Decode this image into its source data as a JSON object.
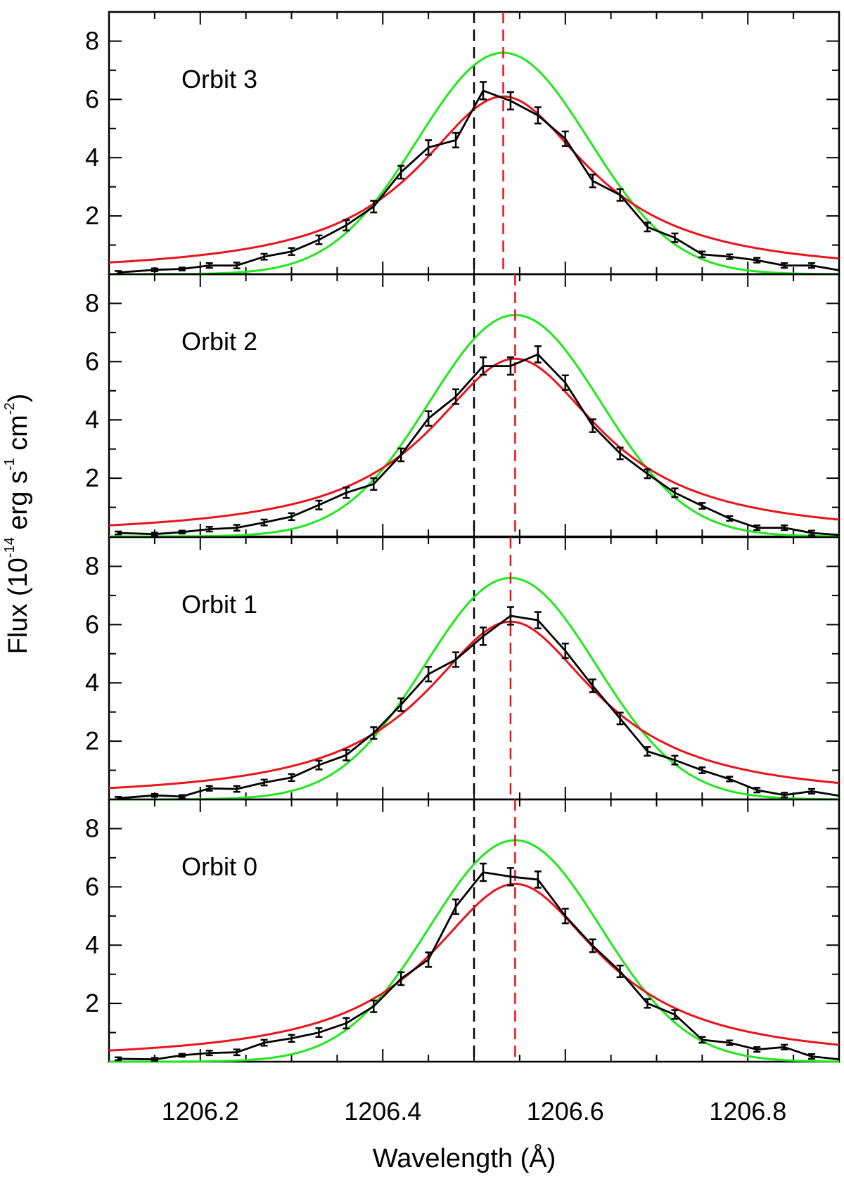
{
  "chart_data": {
    "type": "line",
    "xlabel": "Wavelength (Å)",
    "ylabel": {
      "prefix": "Flux (10",
      "exp1": "-14",
      "mid1": " erg s",
      "exp2": "-1",
      "mid2": " cm",
      "exp3": "-2",
      "suffix": ")"
    },
    "xlim": [
      1206.1,
      1206.9
    ],
    "ylim": [
      0,
      9
    ],
    "x_ticks": [
      1206.2,
      1206.4,
      1206.6,
      1206.8
    ],
    "x_tick_labels": [
      "1206.2",
      "1206.4",
      "1206.6",
      "1206.8"
    ],
    "y_ticks": [
      2,
      4,
      6,
      8
    ],
    "y_tick_labels": [
      "2",
      "4",
      "6",
      "8"
    ],
    "colors": {
      "data": "#000000",
      "fit": "#e8141b",
      "model": "#22e61e",
      "rest_line": "#000000",
      "fit_center": "#e8141b"
    },
    "rest_wavelength": 1206.5,
    "x": [
      1206.11,
      1206.15,
      1206.18,
      1206.21,
      1206.24,
      1206.27,
      1206.3,
      1206.33,
      1206.36,
      1206.39,
      1206.42,
      1206.45,
      1206.48,
      1206.51,
      1206.54,
      1206.57,
      1206.6,
      1206.63,
      1206.66,
      1206.69,
      1206.72,
      1206.75,
      1206.78,
      1206.81,
      1206.84,
      1206.87
    ],
    "panels": [
      {
        "label": "Orbit 3",
        "fit_center": 1206.532,
        "fit_peak": 6.1,
        "model_peak": 7.6,
        "y": [
          0.06,
          0.15,
          0.18,
          0.3,
          0.3,
          0.6,
          0.78,
          1.18,
          1.68,
          2.32,
          3.5,
          4.35,
          4.6,
          6.3,
          5.95,
          5.45,
          4.65,
          3.2,
          2.72,
          1.62,
          1.25,
          0.68,
          0.6,
          0.48,
          0.3,
          0.3
        ],
        "err": [
          0.05,
          0.05,
          0.05,
          0.08,
          0.1,
          0.1,
          0.12,
          0.15,
          0.18,
          0.2,
          0.22,
          0.25,
          0.25,
          0.3,
          0.3,
          0.28,
          0.25,
          0.22,
          0.2,
          0.15,
          0.15,
          0.1,
          0.08,
          0.08,
          0.08,
          0.08
        ]
      },
      {
        "label": "Orbit 2",
        "fit_center": 1206.545,
        "fit_peak": 6.1,
        "model_peak": 7.6,
        "y": [
          0.12,
          0.08,
          0.15,
          0.25,
          0.3,
          0.48,
          0.68,
          1.08,
          1.5,
          1.8,
          2.8,
          4.05,
          4.8,
          5.85,
          5.85,
          6.25,
          5.28,
          3.8,
          2.85,
          2.15,
          1.5,
          1.05,
          0.62,
          0.3,
          0.3,
          0.12
        ],
        "err": [
          0.05,
          0.05,
          0.05,
          0.08,
          0.1,
          0.1,
          0.12,
          0.15,
          0.18,
          0.2,
          0.22,
          0.25,
          0.25,
          0.3,
          0.3,
          0.28,
          0.25,
          0.22,
          0.2,
          0.15,
          0.15,
          0.1,
          0.08,
          0.08,
          0.08,
          0.08
        ]
      },
      {
        "label": "Orbit 1",
        "fit_center": 1206.54,
        "fit_peak": 6.1,
        "model_peak": 7.6,
        "y": [
          0.04,
          0.14,
          0.1,
          0.38,
          0.36,
          0.58,
          0.75,
          1.18,
          1.52,
          2.28,
          3.25,
          4.3,
          4.8,
          5.6,
          6.3,
          6.15,
          5.1,
          3.9,
          2.78,
          1.65,
          1.35,
          1.0,
          0.7,
          0.32,
          0.15,
          0.28
        ],
        "err": [
          0.05,
          0.05,
          0.05,
          0.08,
          0.1,
          0.1,
          0.12,
          0.15,
          0.18,
          0.2,
          0.22,
          0.25,
          0.25,
          0.3,
          0.3,
          0.28,
          0.25,
          0.22,
          0.2,
          0.15,
          0.15,
          0.1,
          0.08,
          0.08,
          0.08,
          0.08
        ]
      },
      {
        "label": "Orbit 0",
        "fit_center": 1206.545,
        "fit_peak": 6.1,
        "model_peak": 7.6,
        "y": [
          0.1,
          0.08,
          0.22,
          0.3,
          0.32,
          0.65,
          0.8,
          1.0,
          1.32,
          1.9,
          2.85,
          3.5,
          5.32,
          6.5,
          6.35,
          6.25,
          5.0,
          3.98,
          3.1,
          2.0,
          1.62,
          0.75,
          0.65,
          0.42,
          0.5,
          0.18
        ],
        "err": [
          0.05,
          0.05,
          0.05,
          0.08,
          0.1,
          0.1,
          0.12,
          0.15,
          0.18,
          0.2,
          0.22,
          0.25,
          0.25,
          0.3,
          0.3,
          0.28,
          0.25,
          0.22,
          0.2,
          0.15,
          0.15,
          0.1,
          0.08,
          0.08,
          0.08,
          0.08
        ]
      }
    ]
  }
}
